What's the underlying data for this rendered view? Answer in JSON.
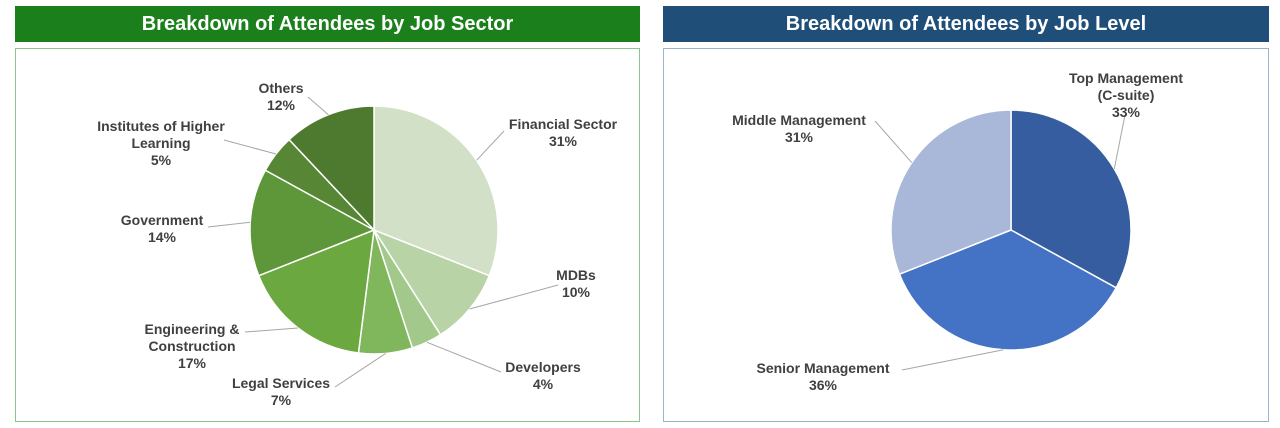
{
  "chart_data": [
    {
      "type": "pie",
      "title": "Breakdown of Attendees by Job Sector",
      "header_color": "#1b7f1b",
      "border_color": "#8fc48f",
      "slices": [
        {
          "label": [
            "Financial Sector"
          ],
          "value": 31,
          "value_label": "31%",
          "color": "#d1e0c6"
        },
        {
          "label": [
            "MDBs"
          ],
          "value": 10,
          "value_label": "10%",
          "color": "#b8d3a6"
        },
        {
          "label": [
            "Developers"
          ],
          "value": 4,
          "value_label": "4%",
          "color": "#a2c98b"
        },
        {
          "label": [
            "Legal Services"
          ],
          "value": 7,
          "value_label": "7%",
          "color": "#80b65c"
        },
        {
          "label": [
            "Engineering &",
            "Construction"
          ],
          "value": 17,
          "value_label": "17%",
          "color": "#6ca840"
        },
        {
          "label": [
            "Government"
          ],
          "value": 14,
          "value_label": "14%",
          "color": "#5e963a"
        },
        {
          "label": [
            "Institutes of Higher",
            "Learning"
          ],
          "value": 5,
          "value_label": "5%",
          "color": "#578734"
        },
        {
          "label": [
            "Others"
          ],
          "value": 12,
          "value_label": "12%",
          "color": "#4e7a30"
        }
      ]
    },
    {
      "type": "pie",
      "title": "Breakdown of Attendees by Job Level",
      "header_color": "#1f4e79",
      "border_color": "#9db3cc",
      "slices": [
        {
          "label": [
            "Top Management",
            "(C-suite)"
          ],
          "value": 33,
          "value_label": "33%",
          "color": "#365d9f"
        },
        {
          "label": [
            "Senior Management"
          ],
          "value": 36,
          "value_label": "36%",
          "color": "#4472c4"
        },
        {
          "label": [
            "Middle Management"
          ],
          "value": 31,
          "value_label": "31%",
          "color": "#a9b7d9"
        }
      ]
    }
  ]
}
